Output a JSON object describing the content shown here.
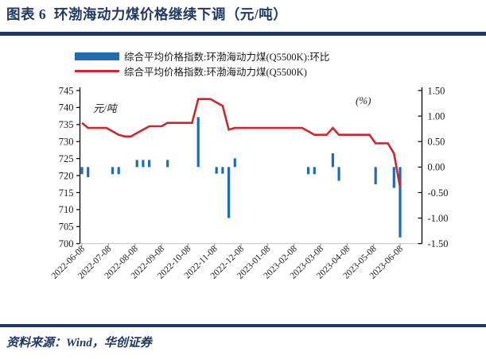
{
  "title": "图表 6  环渤海动力煤价格继续下调（元/吨）",
  "source_note": "资料来源：Wind，华创证券",
  "colors": {
    "accent_navy": "#1F3864",
    "bar_blue": "#1E6CB5",
    "line_red": "#CC2630",
    "axis_text": "#1a1a1a",
    "x_axis_gray": "#c9c9c9"
  },
  "chart_data": {
    "type": "combo bar+line (dual axis)",
    "title": "环渤海动力煤价格继续下调（元/吨）",
    "grid": false,
    "legend_position": "top",
    "left_axis": {
      "label": "元/吨",
      "min": 700,
      "max": 745,
      "tick_step": 5,
      "ticks": [
        "745",
        "740",
        "735",
        "730",
        "725",
        "720",
        "715",
        "710",
        "705",
        "700"
      ]
    },
    "right_axis": {
      "label": "(%)",
      "min": -1.5,
      "max": 1.5,
      "tick_step": 0.5,
      "ticks": [
        "1.50",
        "1.00",
        "0.50",
        "0.00",
        "-0.50",
        "-1.00",
        "-1.50"
      ]
    },
    "x_tick_labels": [
      "2022-06-08",
      "2022-07-08",
      "2022-08-08",
      "2022-09-08",
      "2022-10-08",
      "2022-11-08",
      "2022-12-08",
      "2023-01-08",
      "2023-02-08",
      "2023-03-08",
      "2023-04-08",
      "2023-05-08",
      "2023-06-08"
    ],
    "x": [
      "2022-06-08",
      "2022-06-15",
      "2022-06-22",
      "2022-06-29",
      "2022-07-06",
      "2022-07-13",
      "2022-07-20",
      "2022-07-27",
      "2022-08-03",
      "2022-08-10",
      "2022-08-17",
      "2022-08-24",
      "2022-08-31",
      "2022-09-07",
      "2022-09-14",
      "2022-09-21",
      "2022-09-28",
      "2022-10-05",
      "2022-10-12",
      "2022-10-19",
      "2022-10-26",
      "2022-11-02",
      "2022-11-09",
      "2022-11-16",
      "2022-11-23",
      "2022-11-30",
      "2022-12-07",
      "2022-12-14",
      "2022-12-21",
      "2022-12-28",
      "2023-01-04",
      "2023-01-11",
      "2023-01-18",
      "2023-01-25",
      "2023-02-01",
      "2023-02-08",
      "2023-02-15",
      "2023-02-22",
      "2023-03-01",
      "2023-03-08",
      "2023-03-15",
      "2023-03-22",
      "2023-03-29",
      "2023-04-05",
      "2023-04-12",
      "2023-04-19",
      "2023-04-26",
      "2023-05-03",
      "2023-05-10",
      "2023-05-17",
      "2023-05-24",
      "2023-05-31",
      "2023-06-07"
    ],
    "series": [
      {
        "name": "综合平均价格指数:环渤海动力煤(Q5500K):环比",
        "type": "bar",
        "axis": "right",
        "unit": "%",
        "color": "#1E6CB5",
        "values": [
          -0.14,
          -0.2,
          0,
          0,
          0,
          -0.14,
          -0.14,
          0,
          0,
          0.14,
          0.14,
          0.14,
          0,
          0,
          0.14,
          0,
          0,
          0,
          0,
          0.98,
          0,
          0,
          -0.13,
          -0.13,
          -1.0,
          0.17,
          0,
          0,
          0,
          0,
          0,
          0,
          0,
          0,
          0,
          0,
          0,
          -0.14,
          -0.14,
          0,
          0,
          0.27,
          -0.27,
          0,
          0,
          0,
          0,
          0,
          -0.34,
          0,
          0,
          -0.41,
          -1.38
        ]
      },
      {
        "name": "综合平均价格指数:环渤海动力煤(Q5500K)",
        "type": "line",
        "axis": "left",
        "unit": "元/吨",
        "color": "#CC2630",
        "values": [
          735.5,
          734,
          734,
          734,
          734,
          733,
          732,
          731.5,
          731.5,
          732.5,
          733.5,
          734.5,
          734.5,
          734.5,
          735.5,
          735.5,
          735.5,
          735.5,
          735.5,
          742.5,
          742.5,
          742.5,
          741.5,
          740.5,
          733.5,
          734,
          734,
          734,
          734,
          734,
          734,
          734,
          734,
          734,
          734,
          734,
          734,
          733,
          732,
          732,
          732,
          734,
          732,
          732,
          732,
          732,
          732,
          732,
          729.5,
          729.5,
          729.5,
          726.5,
          716.5
        ]
      }
    ]
  }
}
